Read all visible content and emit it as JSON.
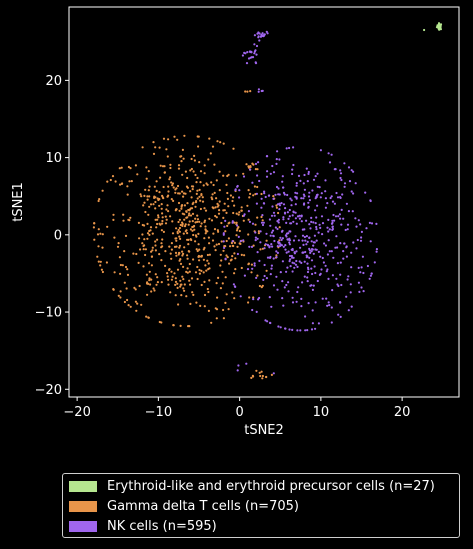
{
  "chart_data": {
    "type": "scatter",
    "title": "",
    "xlabel": "tSNE2",
    "ylabel": "tSNE1",
    "xlim": [
      -21,
      27
    ],
    "ylim": [
      -21,
      29.5
    ],
    "xticks": [
      -20,
      -10,
      0,
      10,
      20
    ],
    "yticks": [
      -20,
      -10,
      0,
      10,
      20
    ],
    "grid": false,
    "legend_position": "bottom",
    "series": [
      {
        "name": "Erythroid-like and erythroid precursor cells (n=27)",
        "color": "#b5e68f",
        "clusters": [
          {
            "cx": 24.6,
            "cy": 27.0,
            "sx": 0.15,
            "sy": 0.2,
            "n": 26
          },
          {
            "cx": 22.7,
            "cy": 26.5,
            "sx": 0.05,
            "sy": 0.05,
            "n": 1
          }
        ]
      },
      {
        "name": "Gamma delta T cells (n=705)",
        "color": "#e8954a",
        "clusters": [
          {
            "cx": -6.5,
            "cy": 0.5,
            "sx": 5.2,
            "sy": 5.6,
            "n": 690
          },
          {
            "cx": 1.3,
            "cy": 18.3,
            "sx": 0.3,
            "sy": 0.3,
            "n": 3
          },
          {
            "cx": 2.5,
            "cy": -18.0,
            "sx": 0.8,
            "sy": 0.3,
            "n": 12
          }
        ]
      },
      {
        "name": "NK cells (n=595)",
        "color": "#a066ee",
        "clusters": [
          {
            "cx": 7.5,
            "cy": -0.5,
            "sx": 4.3,
            "sy": 5.4,
            "n": 545
          },
          {
            "cx": 1.5,
            "cy": 23.2,
            "sx": 0.5,
            "sy": 0.7,
            "n": 22
          },
          {
            "cx": 2.6,
            "cy": 25.8,
            "sx": 0.5,
            "sy": 0.3,
            "n": 20
          },
          {
            "cx": 2.4,
            "cy": 18.7,
            "sx": 0.2,
            "sy": 0.2,
            "n": 4
          },
          {
            "cx": 1.5,
            "cy": -17.5,
            "sx": 1.5,
            "sy": 0.6,
            "n": 4
          }
        ]
      }
    ]
  }
}
